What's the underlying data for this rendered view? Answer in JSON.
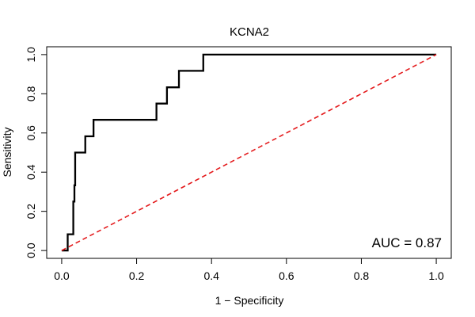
{
  "chart_data": {
    "type": "line",
    "title": "KCNA2",
    "xlabel": "1 − Specificity",
    "ylabel": "Sensitivity",
    "xlim": [
      -0.04,
      1.04
    ],
    "ylim": [
      -0.04,
      1.04
    ],
    "x_ticks": [
      0.0,
      0.2,
      0.4,
      0.6,
      0.8,
      1.0
    ],
    "x_tick_labels": [
      "0.0",
      "0.2",
      "0.4",
      "0.6",
      "0.8",
      "1.0"
    ],
    "y_ticks": [
      0.0,
      0.2,
      0.4,
      0.6,
      0.8,
      1.0
    ],
    "y_tick_labels": [
      "0.0",
      "0.2",
      "0.4",
      "0.6",
      "0.8",
      "1.0"
    ],
    "grid": false,
    "annotation": "AUC = 0.87",
    "series": [
      {
        "style": "step",
        "color": "#000000",
        "x": [
          0.0,
          0.016,
          0.016,
          0.031,
          0.031,
          0.034,
          0.034,
          0.036,
          0.036,
          0.063,
          0.063,
          0.085,
          0.085,
          0.253,
          0.253,
          0.281,
          0.281,
          0.313,
          0.313,
          0.378,
          0.378,
          1.0
        ],
        "y": [
          0.0,
          0.0,
          0.083,
          0.083,
          0.25,
          0.25,
          0.333,
          0.333,
          0.5,
          0.5,
          0.583,
          0.583,
          0.667,
          0.667,
          0.75,
          0.75,
          0.833,
          0.833,
          0.917,
          0.917,
          1.0,
          1.0
        ]
      },
      {
        "style": "dashed",
        "color": "#e41a1c",
        "x": [
          0.0,
          1.0
        ],
        "y": [
          0.0,
          1.0
        ]
      }
    ]
  }
}
